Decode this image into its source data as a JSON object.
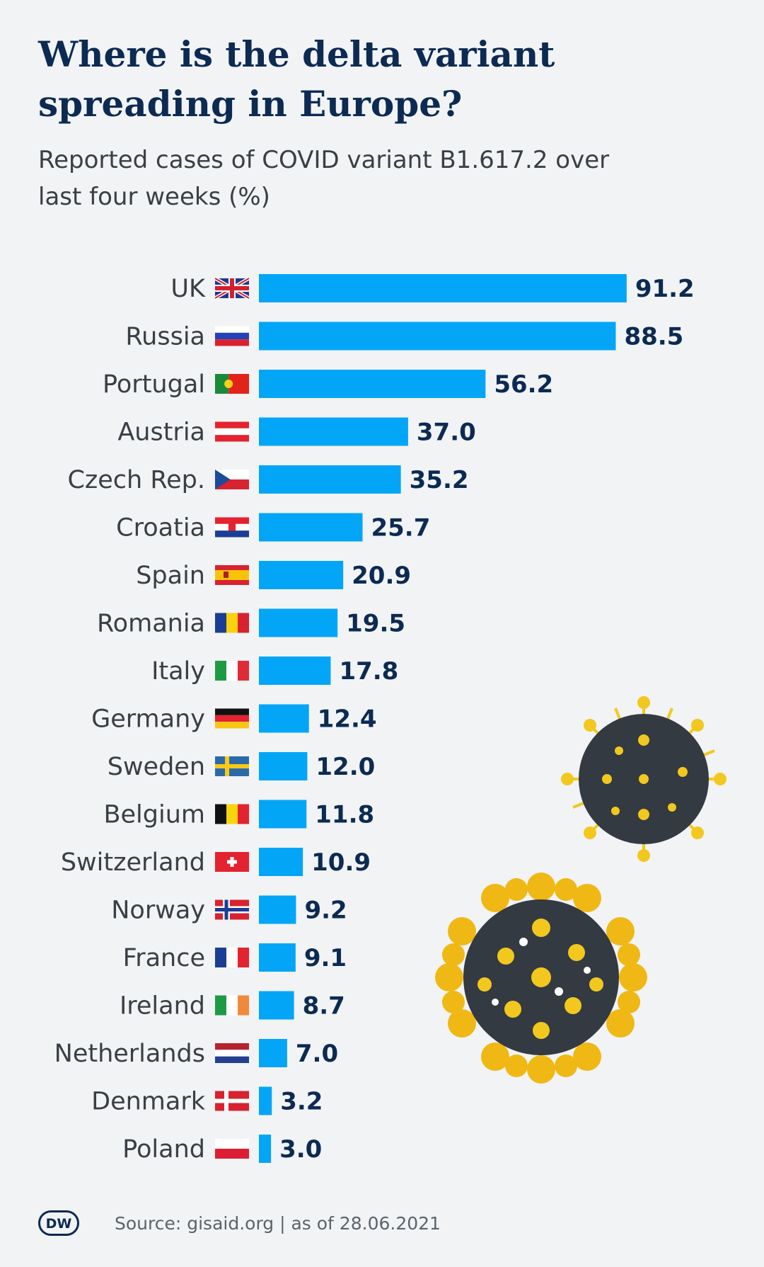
{
  "title": "Where is the delta variant spreading in Europe?",
  "subtitle": "Reported cases of COVID variant B1.617.2 over last four weeks (%)",
  "source": "Source: gisaid.org | as of 28.06.2021",
  "logo_text": "DW",
  "colors": {
    "bar": "#03a5f7",
    "title": "#0c2a52",
    "label": "#3a3f45",
    "background": "#f1f3f5"
  },
  "chart_data": {
    "type": "bar",
    "orientation": "horizontal",
    "title": "Where is the delta variant spreading in Europe?",
    "subtitle": "Reported cases of COVID variant B1.617.2 over last four weeks (%)",
    "xlabel": "",
    "ylabel": "",
    "xlim": [
      0,
      100
    ],
    "grid": false,
    "categories": [
      "UK",
      "Russia",
      "Portugal",
      "Austria",
      "Czech Rep.",
      "Croatia",
      "Spain",
      "Romania",
      "Italy",
      "Germany",
      "Sweden",
      "Belgium",
      "Switzerland",
      "Norway",
      "France",
      "Ireland",
      "Netherlands",
      "Denmark",
      "Poland"
    ],
    "values": [
      91.2,
      88.5,
      56.2,
      37.0,
      35.2,
      25.7,
      20.9,
      19.5,
      17.8,
      12.4,
      12.0,
      11.8,
      10.9,
      9.2,
      9.1,
      8.7,
      7.0,
      3.2,
      3.0
    ],
    "value_labels": [
      "91.2",
      "88.5",
      "56.2",
      "37.0",
      "35.2",
      "25.7",
      "20.9",
      "19.5",
      "17.8",
      "12.4",
      "12.0",
      "11.8",
      "10.9",
      "9.2",
      "9.1",
      "8.7",
      "7.0",
      "3.2",
      "3.0"
    ],
    "flags": [
      "uk-flag-icon",
      "russia-flag-icon",
      "portugal-flag-icon",
      "austria-flag-icon",
      "czech-flag-icon",
      "croatia-flag-icon",
      "spain-flag-icon",
      "romania-flag-icon",
      "italy-flag-icon",
      "germany-flag-icon",
      "sweden-flag-icon",
      "belgium-flag-icon",
      "switzerland-flag-icon",
      "norway-flag-icon",
      "france-flag-icon",
      "ireland-flag-icon",
      "netherlands-flag-icon",
      "denmark-flag-icon",
      "poland-flag-icon"
    ]
  }
}
